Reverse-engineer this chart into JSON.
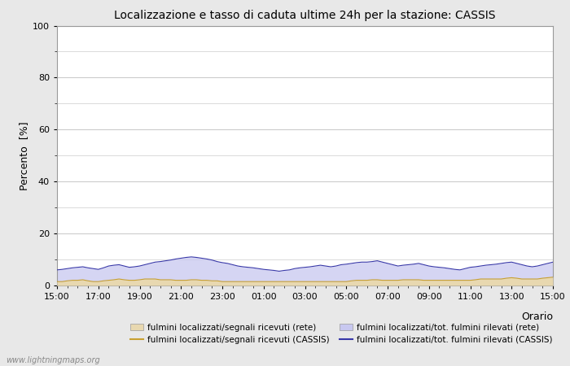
{
  "title": "Localizzazione e tasso di caduta ultime 24h per la stazione: CASSIS",
  "ylabel": "Percento  [%]",
  "xlabel": "Orario",
  "xlim": [
    0,
    48
  ],
  "ylim": [
    0,
    100
  ],
  "yticks": [
    0,
    20,
    40,
    60,
    80,
    100
  ],
  "xtick_labels": [
    "15:00",
    "17:00",
    "19:00",
    "21:00",
    "23:00",
    "01:00",
    "03:00",
    "05:00",
    "07:00",
    "09:00",
    "11:00",
    "13:00",
    "15:00"
  ],
  "bg_color": "#e8e8e8",
  "plot_bg_color": "#ffffff",
  "grid_color": "#cccccc",
  "fill_rete_color": "#e8d8b0",
  "fill_rete_alpha": 1.0,
  "fill_cassis_color": "#c8c8f0",
  "fill_cassis_alpha": 0.75,
  "line_rete_color": "#c8a030",
  "line_cassis_color": "#3838a8",
  "watermark": "www.lightningmaps.org",
  "legend_items": [
    {
      "label": "fulmini localizzati/segnali ricevuti (rete)",
      "type": "fill",
      "color": "#e8d8b0"
    },
    {
      "label": "fulmini localizzati/segnali ricevuti (CASSIS)",
      "type": "line",
      "color": "#c8a030"
    },
    {
      "label": "fulmini localizzati/tot. fulmini rilevati (rete)",
      "type": "fill",
      "color": "#c8c8f0"
    },
    {
      "label": "fulmini localizzati/tot. fulmini rilevati (CASSIS)",
      "type": "line",
      "color": "#3838a8"
    }
  ],
  "cassis_fill": [
    6.0,
    6.2,
    6.5,
    6.8,
    7.0,
    7.2,
    6.8,
    6.5,
    6.2,
    6.8,
    7.5,
    7.8,
    8.0,
    7.5,
    7.0,
    7.2,
    7.5,
    8.0,
    8.5,
    9.0,
    9.2,
    9.5,
    9.8,
    10.2,
    10.5,
    10.8,
    11.0,
    10.8,
    10.5,
    10.2,
    9.8,
    9.2,
    8.8,
    8.5,
    8.0,
    7.5,
    7.2,
    7.0,
    6.8,
    6.5,
    6.2,
    6.0,
    5.8,
    5.5,
    5.8,
    6.0,
    6.5,
    6.8,
    7.0,
    7.2,
    7.5,
    7.8,
    7.5,
    7.2,
    7.5,
    8.0,
    8.2,
    8.5,
    8.8,
    9.0,
    9.0,
    9.2,
    9.5,
    9.0,
    8.5,
    8.0,
    7.5,
    7.8,
    8.0,
    8.2,
    8.5,
    8.0,
    7.5,
    7.2,
    7.0,
    6.8,
    6.5,
    6.2,
    6.0,
    6.5,
    7.0,
    7.2,
    7.5,
    7.8,
    8.0,
    8.2,
    8.5,
    8.8,
    9.0,
    8.5,
    8.0,
    7.5,
    7.2,
    7.5,
    8.0,
    8.5,
    9.0
  ],
  "rete_fill": [
    1.5,
    1.5,
    1.8,
    2.0,
    2.0,
    2.2,
    1.8,
    1.5,
    1.5,
    1.8,
    2.0,
    2.2,
    2.5,
    2.2,
    2.0,
    2.0,
    2.2,
    2.5,
    2.5,
    2.5,
    2.2,
    2.2,
    2.2,
    2.0,
    2.0,
    2.0,
    2.2,
    2.2,
    2.0,
    2.0,
    1.8,
    1.8,
    1.5,
    1.5,
    1.5,
    1.5,
    1.5,
    1.5,
    1.5,
    1.5,
    1.5,
    1.5,
    1.5,
    1.5,
    1.5,
    1.5,
    1.5,
    1.5,
    1.5,
    1.5,
    1.5,
    1.5,
    1.5,
    1.5,
    1.5,
    1.5,
    1.5,
    1.8,
    2.0,
    2.0,
    2.0,
    2.2,
    2.2,
    2.0,
    2.0,
    2.0,
    2.0,
    2.2,
    2.2,
    2.2,
    2.2,
    2.0,
    2.0,
    2.0,
    2.0,
    2.0,
    2.0,
    2.0,
    2.0,
    2.0,
    2.0,
    2.2,
    2.5,
    2.5,
    2.5,
    2.5,
    2.5,
    2.8,
    3.0,
    2.8,
    2.5,
    2.5,
    2.5,
    2.5,
    2.8,
    3.0,
    3.2
  ]
}
